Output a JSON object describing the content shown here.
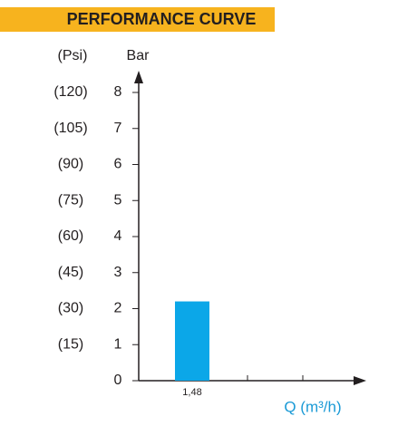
{
  "chart_data": {
    "type": "bar",
    "title": "PERFORMANCE CURVE",
    "y_label": "Bar",
    "y2_label": "(Psi)",
    "x_label": "Q (m³/h)",
    "categories": [
      "1,48",
      null,
      null
    ],
    "values": [
      2.2,
      null,
      null
    ],
    "color": "#0ba7e8",
    "ylim": [
      0,
      8
    ],
    "yticks": [
      0,
      1,
      2,
      3,
      4,
      5,
      6,
      7,
      8
    ],
    "y2lim": [
      0,
      120
    ],
    "y2ticks": [
      {
        "value": 15,
        "label": "(15)"
      },
      {
        "value": 30,
        "label": "(30)"
      },
      {
        "value": 45,
        "label": "(45)"
      },
      {
        "value": 60,
        "label": "(60)"
      },
      {
        "value": 75,
        "label": "(75)"
      },
      {
        "value": 90,
        "label": "(90)"
      },
      {
        "value": 105,
        "label": "(105)"
      },
      {
        "value": 120,
        "label": "(120)"
      }
    ],
    "grid": false
  }
}
